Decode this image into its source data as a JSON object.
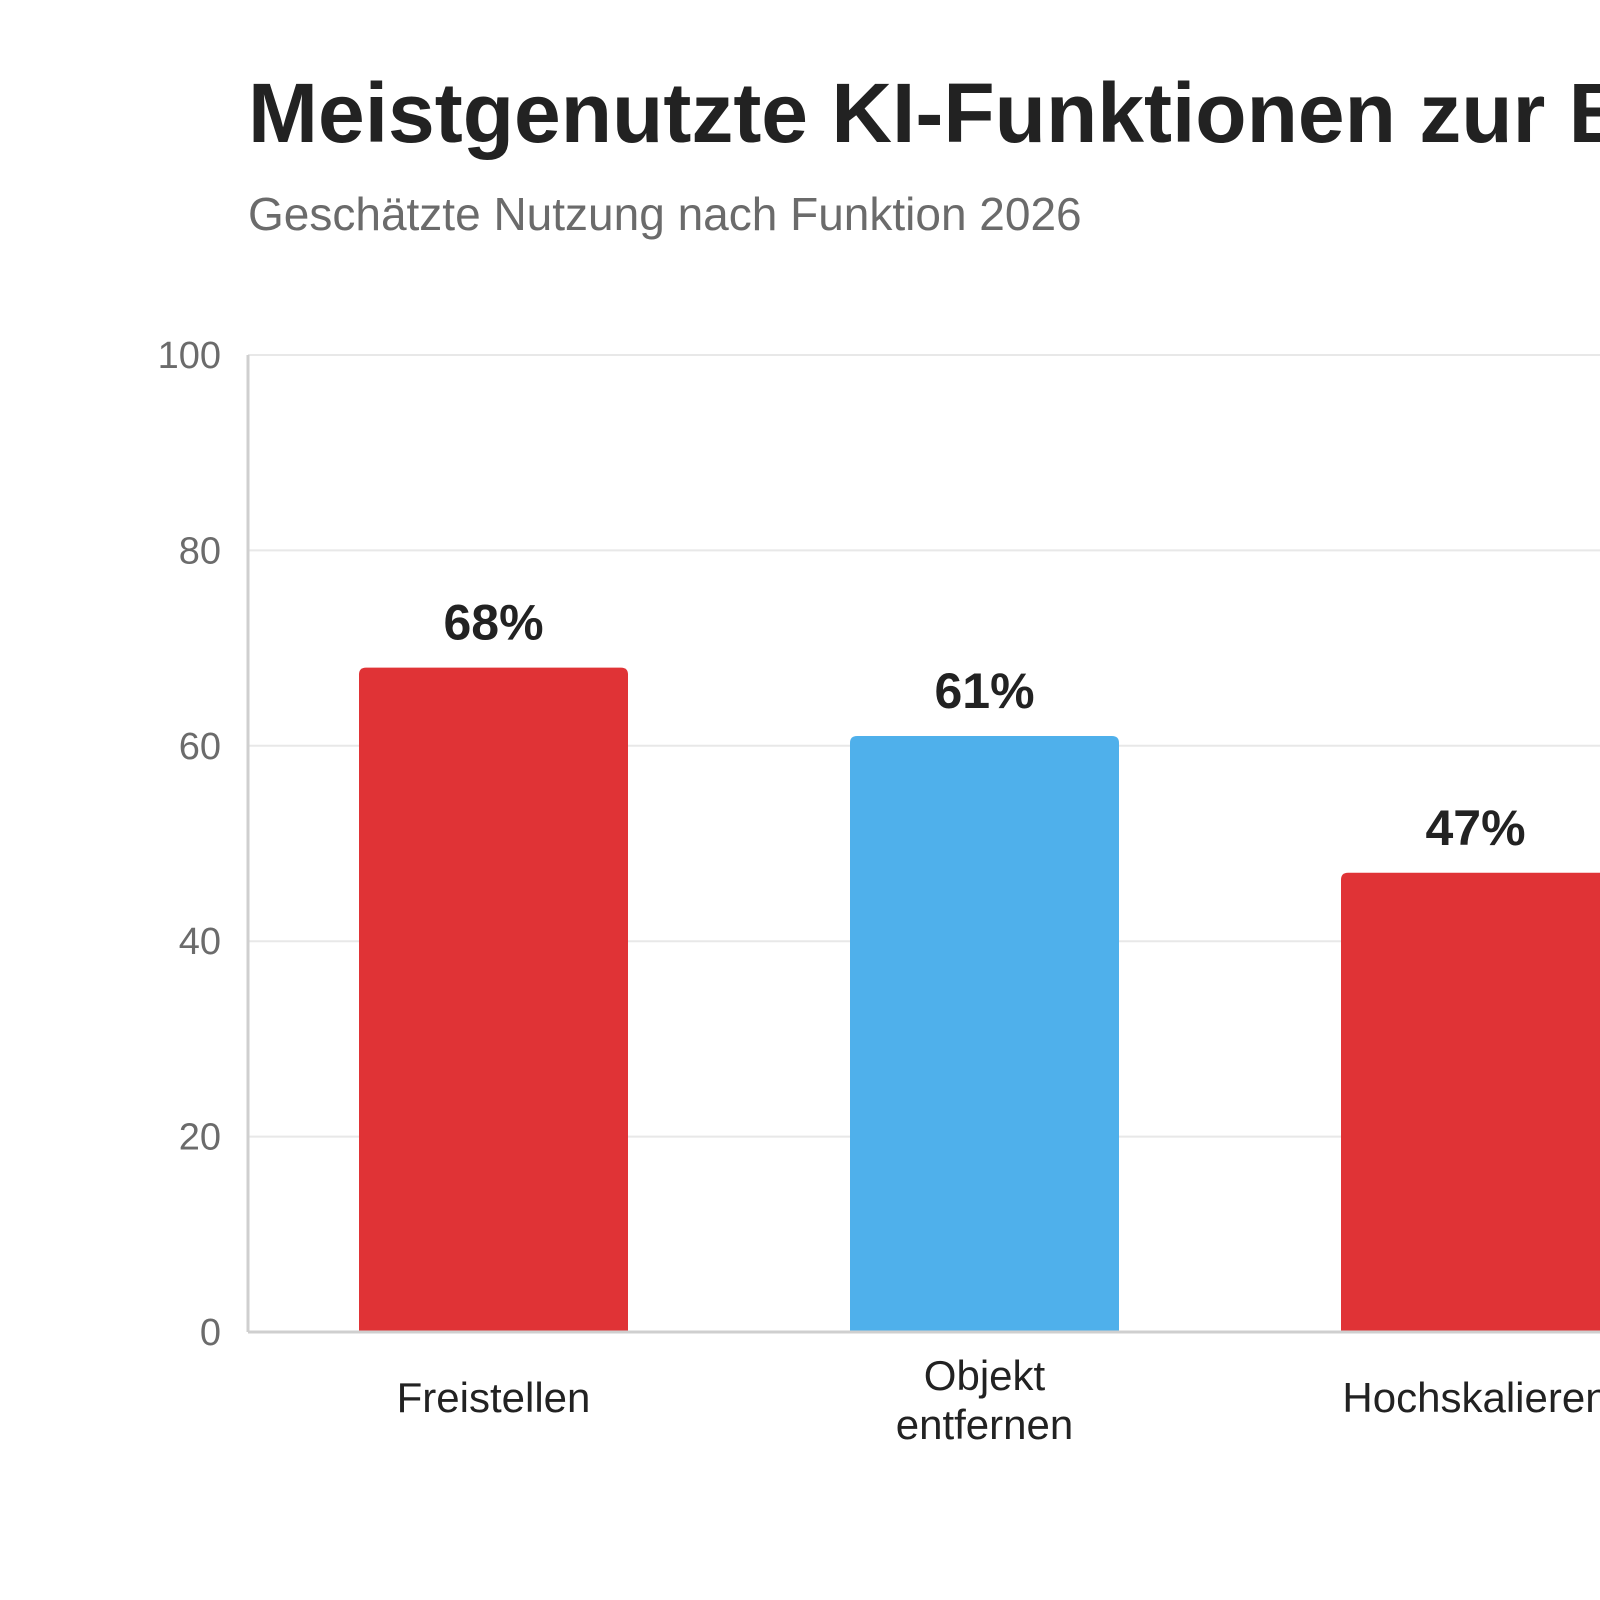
{
  "chart_data": {
    "type": "bar",
    "title": "Meistgenutzte KI-Funktionen zur Bildbearbeitung",
    "subtitle": "Geschätzte Nutzung nach Funktion 2026",
    "xlabel": "",
    "ylabel": "",
    "categories": [
      [
        "Freistellen"
      ],
      [
        "Objekt",
        "entfernen"
      ],
      [
        "Hochskalieren"
      ]
    ],
    "values": [
      68,
      61,
      47
    ],
    "value_labels": [
      "68%",
      "61%",
      "47%"
    ],
    "bar_colors": [
      "#e03336",
      "#4fb0eb",
      "#e03336"
    ],
    "ylim": [
      0,
      100
    ],
    "yticks": [
      "0",
      "20",
      "40",
      "60",
      "80",
      "100"
    ],
    "grid": true,
    "legend": "none"
  }
}
